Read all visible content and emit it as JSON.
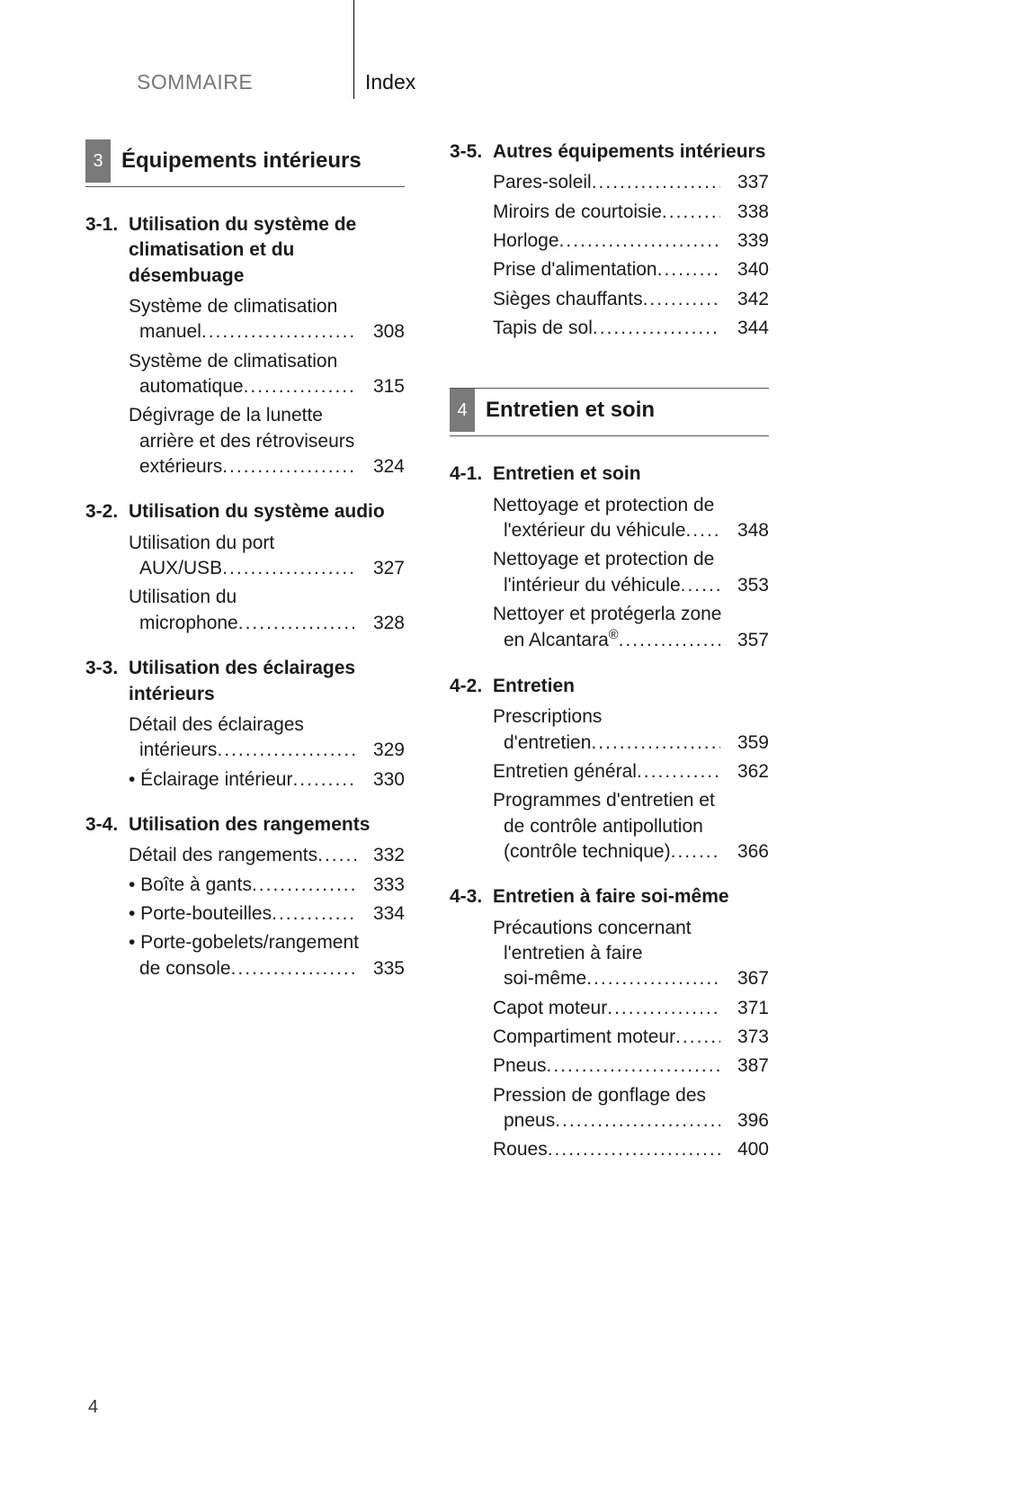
{
  "header": {
    "sommaire": "SOMMAIRE",
    "index": "Index"
  },
  "page_number": "4",
  "chapters": [
    {
      "num": "3",
      "title": "Équipements intérieurs",
      "sections": [
        {
          "num": "3-1.",
          "title": "Utilisation du système de climatisation et du désembuage",
          "entries": [
            {
              "lines": [
                "Système de climatisation",
                "manuel"
              ],
              "page": "308"
            },
            {
              "lines": [
                "Système de climatisation",
                "automatique"
              ],
              "page": "315"
            },
            {
              "lines": [
                "Dégivrage de la lunette",
                "arrière et des rétroviseurs",
                "extérieurs"
              ],
              "page": "324"
            }
          ]
        },
        {
          "num": "3-2.",
          "title": "Utilisation du système audio",
          "entries": [
            {
              "lines": [
                "Utilisation du port",
                "AUX/USB"
              ],
              "page": "327"
            },
            {
              "lines": [
                "Utilisation du",
                "microphone"
              ],
              "page": "328"
            }
          ]
        },
        {
          "num": "3-3.",
          "title": "Utilisation des éclairages intérieurs",
          "entries": [
            {
              "lines": [
                "Détail des éclairages",
                "intérieurs"
              ],
              "page": "329"
            },
            {
              "lines": [
                "• Éclairage intérieur"
              ],
              "page": "330"
            }
          ]
        },
        {
          "num": "3-4.",
          "title": "Utilisation des rangements",
          "entries": [
            {
              "lines": [
                "Détail des rangements"
              ],
              "page": "332"
            },
            {
              "lines": [
                "• Boîte à gants"
              ],
              "page": "333"
            },
            {
              "lines": [
                "• Porte-bouteilles"
              ],
              "page": "334"
            },
            {
              "lines": [
                "• Porte-gobelets/rangement",
                "de console"
              ],
              "page": "335"
            }
          ]
        },
        {
          "num": "3-5.",
          "title": "Autres équipements intérieurs",
          "entries": [
            {
              "lines": [
                "Pares-soleil"
              ],
              "page": "337"
            },
            {
              "lines": [
                "Miroirs de courtoisie"
              ],
              "page": "338"
            },
            {
              "lines": [
                "Horloge"
              ],
              "page": "339"
            },
            {
              "lines": [
                "Prise d'alimentation"
              ],
              "page": "340"
            },
            {
              "lines": [
                "Sièges chauffants"
              ],
              "page": "342"
            },
            {
              "lines": [
                "Tapis de sol"
              ],
              "page": "344"
            }
          ]
        }
      ]
    },
    {
      "num": "4",
      "title": "Entretien et soin",
      "sections": [
        {
          "num": "4-1.",
          "title": "Entretien et soin",
          "entries": [
            {
              "lines": [
                "Nettoyage et protection de",
                "l'extérieur du véhicule"
              ],
              "page": "348"
            },
            {
              "lines": [
                "Nettoyage et protection de",
                "l'intérieur du véhicule"
              ],
              "page": "353"
            },
            {
              "lines": [
                "Nettoyer et protégerla zone",
                "en Alcantara®"
              ],
              "sup": true,
              "page": "357"
            }
          ]
        },
        {
          "num": "4-2.",
          "title": "Entretien",
          "entries": [
            {
              "lines": [
                "Prescriptions",
                "d'entretien"
              ],
              "page": "359"
            },
            {
              "lines": [
                "Entretien général"
              ],
              "page": "362"
            },
            {
              "lines": [
                "Programmes d'entretien et",
                "de contrôle antipollution",
                "(contrôle technique)"
              ],
              "page": "366"
            }
          ]
        },
        {
          "num": "4-3.",
          "title": "Entretien à faire soi-même",
          "entries": [
            {
              "lines": [
                "Précautions concernant",
                "l'entretien à faire",
                "soi-même"
              ],
              "page": "367"
            },
            {
              "lines": [
                "Capot moteur"
              ],
              "page": "371"
            },
            {
              "lines": [
                "Compartiment moteur"
              ],
              "page": "373"
            },
            {
              "lines": [
                "Pneus"
              ],
              "page": "387"
            },
            {
              "lines": [
                "Pression de gonflage des",
                "pneus"
              ],
              "page": "396"
            },
            {
              "lines": [
                "Roues"
              ],
              "page": "400"
            }
          ]
        }
      ]
    }
  ]
}
